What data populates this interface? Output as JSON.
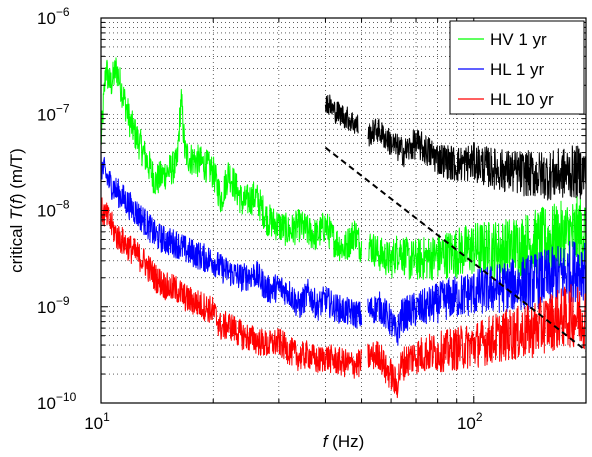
{
  "chart_data": {
    "type": "line",
    "xscale": "log",
    "yscale": "log",
    "xlim": [
      10,
      200
    ],
    "ylim": [
      1e-10,
      1e-06
    ],
    "grid": true,
    "legend_position": "top-right",
    "xlabel_italic": "f",
    "xlabel_rest": " (Hz)",
    "ylabel_pre": "critical ",
    "ylabel_italic": "T",
    "ylabel_mid": "(",
    "ylabel_italic2": "f",
    "ylabel_post": ")  (m/T)",
    "x_tick_labels": [
      {
        "value": 10,
        "base": "10",
        "exp": "1"
      },
      {
        "value": 100,
        "base": "10",
        "exp": "2"
      }
    ],
    "y_tick_labels": [
      {
        "value": 1e-10,
        "base": "10",
        "exp": "−10"
      },
      {
        "value": 1e-09,
        "base": "10",
        "exp": "−9"
      },
      {
        "value": 1e-08,
        "base": "10",
        "exp": "−8"
      },
      {
        "value": 1e-07,
        "base": "10",
        "exp": "−7"
      },
      {
        "value": 1e-06,
        "base": "10",
        "exp": "−6"
      }
    ],
    "series": [
      {
        "name": "HV 1 yr",
        "color": "#00ff00",
        "noise": 0.35,
        "segments": [
          {
            "x": [
              10,
              10.3,
              10.6,
              11,
              11.5,
              12,
              13,
              14,
              15,
              16,
              16.4,
              16.8,
              17.3,
              18,
              19,
              20,
              21,
              22,
              24,
              26,
              28,
              30,
              32,
              34,
              36,
              38,
              40,
              42,
              45,
              48,
              50
            ],
            "y": [
              5e-08,
              3e-07,
              2e-07,
              3e-07,
              1.5e-07,
              8e-08,
              4e-08,
              2e-08,
              2.5e-08,
              3e-08,
              1.5e-07,
              4e-08,
              3.5e-08,
              3.3e-08,
              3e-08,
              2.5e-08,
              1.3e-08,
              2.5e-08,
              1.2e-08,
              1.4e-08,
              8e-09,
              7e-09,
              6e-09,
              7e-09,
              6e-09,
              5.5e-09,
              7e-09,
              5e-09,
              4e-09,
              6e-09,
              4e-09
            ]
          },
          {
            "x": [
              52,
              56,
              60,
              63,
              67,
              75,
              85,
              100,
              120,
              140,
              160,
              180,
              200
            ],
            "y": [
              4.5e-09,
              3.5e-09,
              3e-09,
              4e-09,
              3e-09,
              3.2e-09,
              3.5e-09,
              4e-09,
              4e-09,
              4.5e-09,
              5e-09,
              5.5e-09,
              6e-09
            ]
          }
        ]
      },
      {
        "name": "HL 1 yr",
        "color": "#0000ff",
        "noise": 0.3,
        "segments": [
          {
            "x": [
              10,
              10.5,
              11,
              12,
              13,
              14,
              15,
              16,
              17,
              18,
              19,
              20,
              21,
              22,
              24,
              26,
              28,
              30,
              32,
              34,
              36,
              38,
              40,
              42,
              45,
              48,
              50
            ],
            "y": [
              3e-08,
              2e-08,
              1.6e-08,
              1.1e-08,
              8e-09,
              5.5e-09,
              4.8e-09,
              4.5e-09,
              3.8e-09,
              3.5e-09,
              3.2e-09,
              3e-09,
              2.5e-09,
              2.3e-09,
              2e-09,
              2.2e-09,
              1.5e-09,
              1.6e-09,
              1.4e-09,
              1e-09,
              1.4e-09,
              1e-09,
              1.2e-09,
              1e-09,
              9e-10,
              8.5e-10,
              8e-10
            ]
          },
          {
            "x": [
              52,
              56,
              60,
              62,
              64,
              68,
              75,
              85,
              100,
              120,
              140,
              160,
              180,
              200
            ],
            "y": [
              9e-10,
              1e-09,
              7e-10,
              5e-10,
              8e-10,
              9e-10,
              1e-09,
              1.2e-09,
              1.4e-09,
              1.6e-09,
              1.8e-09,
              2e-09,
              2.3e-09,
              2.6e-09
            ]
          }
        ]
      },
      {
        "name": "HL 10 yr",
        "color": "#ff0000",
        "noise": 0.3,
        "segments": [
          {
            "x": [
              10,
              10.5,
              11,
              12,
              13,
              14,
              15,
              16,
              17,
              18,
              19,
              20,
              21,
              22,
              24,
              26,
              28,
              30,
              32,
              34,
              36,
              38,
              40,
              42,
              45,
              48,
              50
            ],
            "y": [
              1e-08,
              8e-09,
              5.5e-09,
              4e-09,
              3e-09,
              2e-09,
              1.6e-09,
              1.5e-09,
              1.2e-09,
              1.1e-09,
              1e-09,
              9e-10,
              6e-10,
              6.5e-10,
              5e-10,
              4.5e-10,
              4e-10,
              4.3e-10,
              3.5e-10,
              3e-10,
              3.2e-10,
              2.7e-10,
              3e-10,
              2.8e-10,
              2.6e-10,
              2.5e-10,
              2.6e-10
            ]
          },
          {
            "x": [
              52,
              56,
              58,
              60,
              62,
              64,
              68,
              75,
              85,
              100,
              120,
              140,
              160,
              180,
              200
            ],
            "y": [
              3e-10,
              3.2e-10,
              2.2e-10,
              2e-10,
              1.5e-10,
              2.5e-10,
              3e-10,
              3.3e-10,
              3.5e-10,
              4e-10,
              5e-10,
              5.5e-10,
              7e-10,
              8e-10,
              8e-10
            ]
          }
        ]
      },
      {
        "color": "#000000",
        "noise": 0.25,
        "segments": [
          {
            "x": [
              40,
              42,
              44,
              46,
              48,
              49
            ],
            "y": [
              1.4e-07,
              1.1e-07,
              1e-07,
              9e-08,
              8e-08,
              7.5e-08
            ]
          },
          {
            "x": [
              52,
              55,
              60,
              65,
              70,
              80,
              90,
              100,
              110,
              120,
              140,
              160,
              180,
              200
            ],
            "y": [
              6e-08,
              7e-08,
              5e-08,
              4e-08,
              5e-08,
              3.5e-08,
              3e-08,
              3.2e-08,
              2.8e-08,
              2.6e-08,
              2.4e-08,
              2.3e-08,
              2.5e-08,
              2.5e-08
            ]
          }
        ]
      },
      {
        "color": "#000000",
        "dashed": true,
        "segments": [
          {
            "x": [
              40,
              200
            ],
            "y": [
              4.5e-08,
              3.5e-10
            ]
          }
        ]
      }
    ]
  }
}
